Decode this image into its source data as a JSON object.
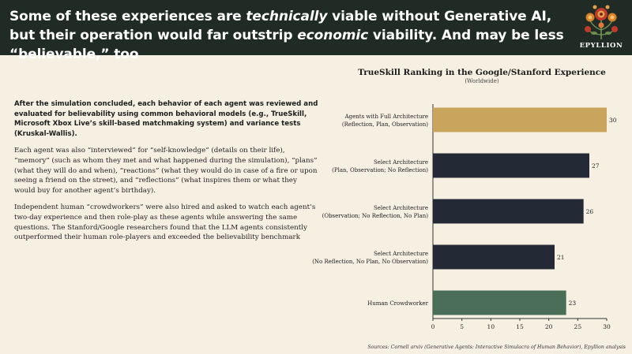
{
  "header": {
    "title_part1": "Some of these experiences are ",
    "title_em1": "technically",
    "title_part2": " viable without Generative AI, but their operation would far outstrip ",
    "title_em2": "economic",
    "title_part3": " viability. And may be less “believable,” too",
    "logo_text": "EPYLLION"
  },
  "body": {
    "paragraphs": [
      "After the simulation concluded, each behavior of each agent was reviewed and evaluated for believability using common behavioral models (e.g., TrueSkill, Microsoft Xbox Live’s skill-based matchmaking system) and variance tests (Kruskal-Wallis).",
      "Each agent was also “interviewed” for “self-knowledge” (details on their life), “memory” (such as whom they met and what happened during the simulation), “plans” (what they will do and when), “reactions” (what they would do in case of a fire or upon seeing a friend on the street), and “reflections” (what inspires them or what they would buy for another agent’s birthday).",
      "Independent human “crowdworkers” were also hired and asked to watch each agent’s two-day experience and then role-play as these agents while answering the same questions. The Stanford/Google researchers found that the LLM agents consistently outperformed their human role-players and exceeded the believability benchmark"
    ]
  },
  "chart_data": {
    "type": "bar",
    "orientation": "horizontal",
    "title": "TrueSkill Ranking in the Google/Stanford Experience",
    "subtitle": "(Worldwide)",
    "categories": [
      [
        "Agents with Full Architecture",
        "(Reflection, Plan, Observation)"
      ],
      [
        "Select Architecture",
        "(Plan, Observation; No Reflection)"
      ],
      [
        "Select Architecture",
        "(Observation; No Reflection, No Plan)"
      ],
      [
        "Select Architecture",
        "(No Reflection, No Plan, No Observation)"
      ],
      [
        "Human Crowdworker"
      ]
    ],
    "values": [
      30,
      27,
      26,
      21,
      23
    ],
    "value_labels": [
      "30",
      "27",
      "26",
      "21",
      "23"
    ],
    "bar_colors": [
      "#c9a45c",
      "#232a35",
      "#232a35",
      "#232a35",
      "#4a6e57"
    ],
    "xlim": [
      0,
      30
    ],
    "xticks": [
      0,
      5,
      10,
      15,
      20,
      25,
      30
    ],
    "grid": false,
    "legend": "none"
  },
  "source": "Sources: Cornell arxiv (Generative Agents: Interactive Simulacra of Human Behavior), Epyllion analysis"
}
